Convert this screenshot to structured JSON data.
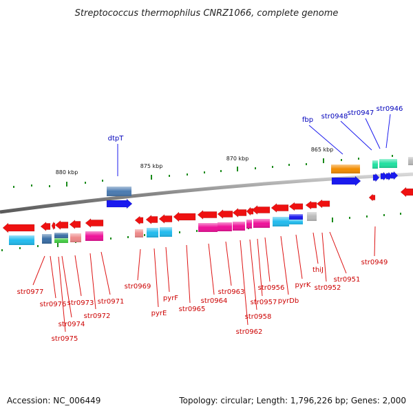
{
  "title": "Streptococcus thermophilus CNRZ1066, complete genome",
  "footer": {
    "accession": "Accession: NC_006449",
    "summary": "Topology: circular; Length: 1,796,226 bp; Genes: 2,000"
  },
  "colors": {
    "forward": "#1a1aee",
    "reverse": "#ee1111",
    "label_forward": "#0000bb",
    "label_reverse": "#cc0000",
    "backbone": "#888888",
    "tick": "#1a8a1a"
  },
  "ticks": [
    {
      "label": "880 kbp"
    },
    {
      "label": "875 kbp"
    },
    {
      "label": "870 kbp"
    },
    {
      "label": "865 kbp"
    }
  ],
  "forward_genes": [
    {
      "name": "dtpT",
      "color": "#3a6ea5"
    },
    {
      "name": "fbp",
      "color": "#f28c00"
    },
    {
      "name": "str0948",
      "color": "#20e0a0"
    },
    {
      "name": "str0947",
      "color": "#20e0a0"
    },
    {
      "name": "str0946",
      "color": "#20e0a0"
    }
  ],
  "reverse_genes": [
    {
      "name": "str0977",
      "color": "#22bbee"
    },
    {
      "name": "str0976",
      "color": "#3a6ea5"
    },
    {
      "name": "str0975",
      "color": "#3a6ea5"
    },
    {
      "name": "str0974",
      "color": "#44cc44"
    },
    {
      "name": "str0973",
      "color": "#3a6ea5"
    },
    {
      "name": "str0972",
      "color": "#ee7788"
    },
    {
      "name": "str0971",
      "color": "#ee1199"
    },
    {
      "name": "str0969",
      "color": "#ee7788"
    },
    {
      "name": "pyrE",
      "color": "#22bbee"
    },
    {
      "name": "pyrF",
      "color": "#22bbee"
    },
    {
      "name": "str0965",
      "color": "#ee1199"
    },
    {
      "name": "str0964",
      "color": "#ee1199"
    },
    {
      "name": "str0963",
      "color": "#ee1199"
    },
    {
      "name": "str0962",
      "color": "#ee1199"
    },
    {
      "name": "str0958",
      "color": "#ee1199"
    },
    {
      "name": "str0957",
      "color": "#ee1199"
    },
    {
      "name": "str0956",
      "color": "#ee1199"
    },
    {
      "name": "pyrDb",
      "color": "#22bbee"
    },
    {
      "name": "pyrK",
      "color": "#1a1aee"
    },
    {
      "name": "thiJ",
      "color": "#bbbbbb"
    },
    {
      "name": "str0952",
      "color": "#bbbbbb"
    },
    {
      "name": "str0951",
      "color": "#bbbbbb"
    },
    {
      "name": "str0949",
      "color": "#bbbbbb"
    }
  ]
}
